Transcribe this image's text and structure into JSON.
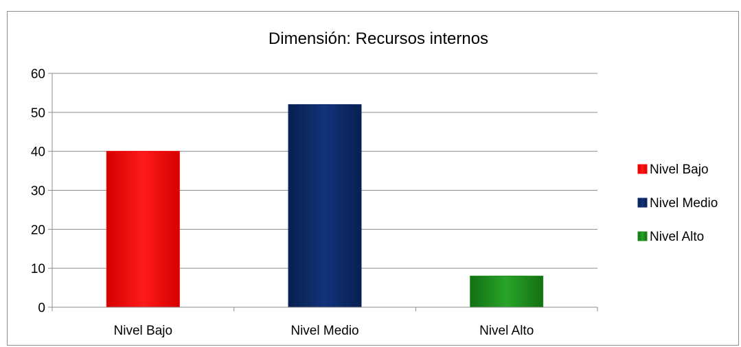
{
  "chart_data": {
    "type": "bar",
    "title": "Dimensión: Recursos internos",
    "categories": [
      "Nivel Bajo",
      "Nivel Medio",
      "Nivel Alto"
    ],
    "values": [
      40,
      52,
      8
    ],
    "colors": [
      "#ff0000",
      "#0d2a6b",
      "#1e8c1e"
    ],
    "ylim": [
      0,
      60
    ],
    "yticks": [
      0,
      10,
      20,
      30,
      40,
      50,
      60
    ],
    "grid": true,
    "legend_position": "right",
    "xlabel": "",
    "ylabel": ""
  }
}
